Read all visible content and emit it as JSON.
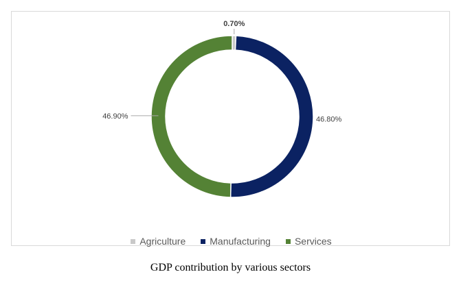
{
  "chart_data": {
    "type": "pie",
    "style": "donut",
    "categories": [
      "Agriculture",
      "Manufacturing",
      "Services"
    ],
    "values": [
      0.7,
      46.8,
      46.9
    ],
    "value_labels": [
      "0.70%",
      "46.80%",
      "46.90%"
    ],
    "colors": [
      "#c9c9c9",
      "#0b2262",
      "#548235"
    ],
    "title": "",
    "legend_position": "bottom"
  },
  "caption": "GDP contribution by various sectors"
}
